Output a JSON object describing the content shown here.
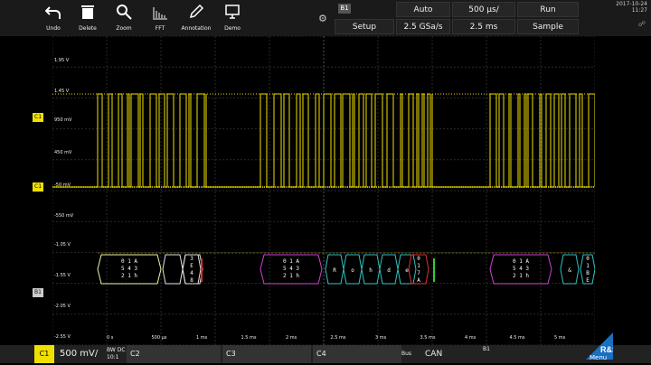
{
  "toolbar": {
    "buttons": [
      {
        "label": "Undo",
        "icon": "undo-icon"
      },
      {
        "label": "Delete",
        "icon": "trash-icon"
      },
      {
        "label": "Zoom",
        "icon": "zoom-icon"
      },
      {
        "label": "FFT",
        "icon": "fft-icon"
      },
      {
        "label": "Annotation",
        "icon": "pen-icon"
      },
      {
        "label": "Demo",
        "icon": "demo-icon"
      }
    ]
  },
  "header": {
    "b1_tag": "B1",
    "trigger_mode": "Auto",
    "timebase": "500 µs/",
    "run_state": "Run",
    "setup": "Setup",
    "sample_rate": "2.5 GSa/s",
    "record_length": "2.5 ms",
    "acq_mode": "Sample",
    "date": "2017-10-24",
    "time": "11:27"
  },
  "screen": {
    "volt_labels": [
      "1.95 V",
      "1.45 V",
      "950 mV",
      "450 mV",
      "-50 mV",
      "-550 mV",
      "-1.05 V",
      "-1.55 V",
      "-2.05 V",
      "-2.55 V"
    ],
    "time_labels": [
      "0 s",
      "500 µs",
      "1 ms",
      "1.5 ms",
      "2 ms",
      "2.5 ms",
      "3 ms",
      "3.5 ms",
      "4 ms",
      "4.5 ms",
      "5 ms"
    ],
    "ch_markers": [
      "C1",
      "C1",
      "B1"
    ],
    "decode": {
      "frame1": [
        "0 1 A",
        "5 4 3",
        "2 1 h"
      ],
      "frame1b": [
        "3",
        "E",
        "4",
        "8"
      ],
      "frame2": [
        "0 1 A",
        "5 4 3",
        "2 1 h"
      ],
      "frame2_text": [
        "R",
        "o",
        "h",
        "d",
        "e"
      ],
      "frame2b": [
        "0",
        "1",
        "7",
        "A"
      ],
      "frame3": [
        "0 1 A",
        "5 4 3",
        "2 1 h"
      ],
      "frame3_text": [
        "&"
      ],
      "frame3b": [
        "0",
        "1",
        "B",
        "E"
      ]
    }
  },
  "bottom": {
    "c1": "C1",
    "c1_scale": "500 mV/",
    "bw": "BW DC",
    "bw_val": "10:1",
    "c2": "C2",
    "c3": "C3",
    "c4": "C4",
    "bus": "Bus",
    "bus_type": "CAN",
    "b1": "B1",
    "menu": "Menu"
  },
  "colors": {
    "trace": "#f0e000",
    "magenta": "#d040d0",
    "cyan": "#30c0c0",
    "red": "#e03030",
    "green": "#30d030",
    "white": "#e0e0e0"
  }
}
